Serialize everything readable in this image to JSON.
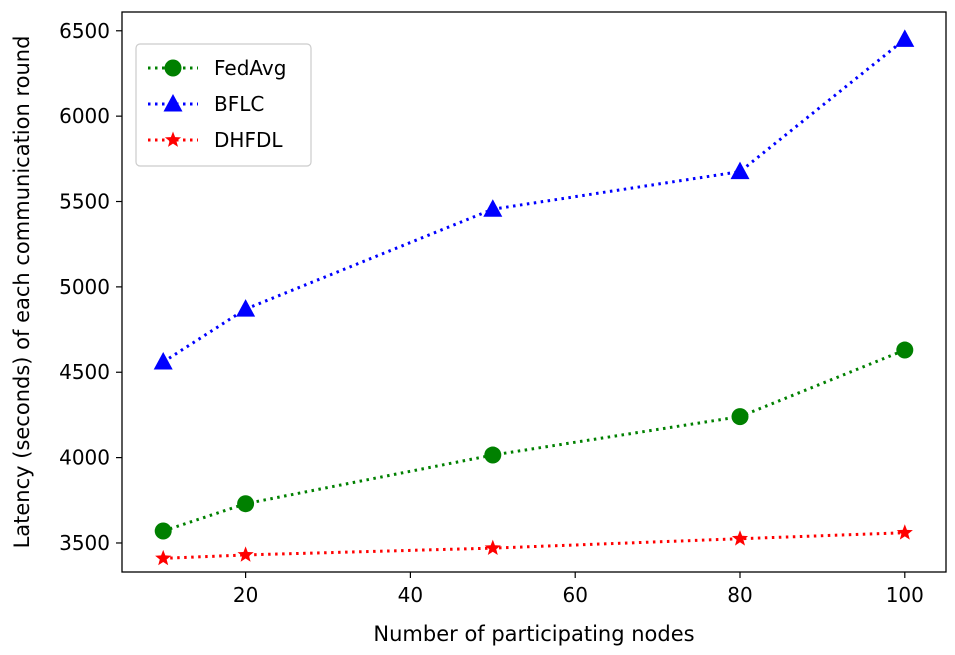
{
  "chart_data": {
    "type": "line",
    "title": "",
    "xlabel": "Number of participating nodes",
    "ylabel": "Latency (seconds) of each communication round",
    "x": [
      10,
      20,
      50,
      80,
      100
    ],
    "xlim": [
      5,
      105
    ],
    "ylim": [
      3330,
      6610
    ],
    "xticks": [
      20,
      40,
      60,
      80,
      100
    ],
    "yticks": [
      3500,
      4000,
      4500,
      5000,
      5500,
      6000,
      6500
    ],
    "grid": false,
    "legend_position": "top-left",
    "series": [
      {
        "name": "FedAvg",
        "values": [
          3570,
          3730,
          4015,
          4240,
          4630
        ],
        "color": "#008000",
        "marker": "circle",
        "line_style": "dotted"
      },
      {
        "name": "BFLC",
        "values": [
          4560,
          4870,
          5455,
          5675,
          6450
        ],
        "color": "#0000ff",
        "marker": "triangle",
        "line_style": "dotted"
      },
      {
        "name": "DHFDL",
        "values": [
          3410,
          3430,
          3470,
          3525,
          3560
        ],
        "color": "#ff0000",
        "marker": "star",
        "line_style": "dotted"
      }
    ]
  }
}
